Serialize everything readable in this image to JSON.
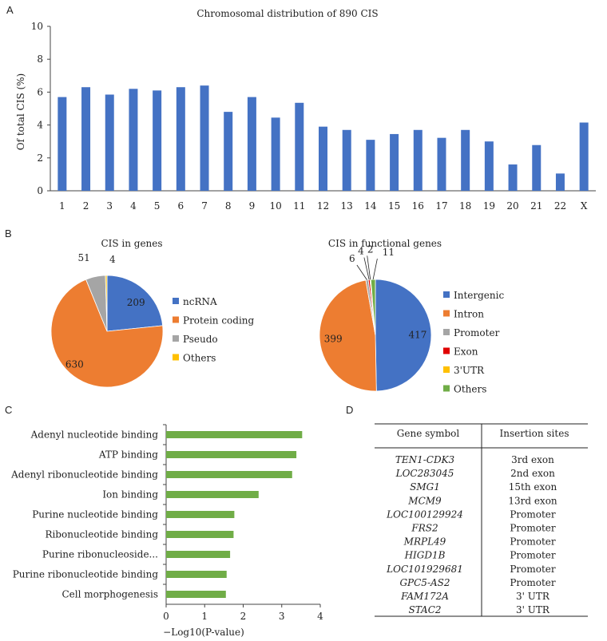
{
  "panels": {
    "a": "A",
    "b": "B",
    "c": "C",
    "d": "D"
  },
  "chart_data": [
    {
      "type": "bar",
      "title": "Chromosomal distribution of 890 CIS",
      "ylabel": "Of total CIS (%)",
      "xlabel": "",
      "ylim": [
        0,
        10
      ],
      "yticks": [
        0,
        2,
        4,
        6,
        8,
        10
      ],
      "categories": [
        "1",
        "2",
        "3",
        "4",
        "5",
        "6",
        "7",
        "8",
        "9",
        "10",
        "11",
        "12",
        "13",
        "14",
        "15",
        "16",
        "17",
        "18",
        "19",
        "20",
        "21",
        "22",
        "X"
      ],
      "values": [
        5.7,
        6.3,
        5.85,
        6.2,
        6.1,
        6.3,
        6.4,
        4.8,
        5.7,
        4.45,
        5.35,
        3.9,
        3.7,
        3.1,
        3.45,
        3.7,
        3.22,
        3.7,
        3.0,
        1.6,
        2.78,
        1.05,
        4.15
      ],
      "color": "#4472C4",
      "grid": false
    },
    {
      "type": "pie",
      "title": "CIS in genes",
      "slices": [
        {
          "label": "ncRNA",
          "value": 209,
          "color": "#4472C4"
        },
        {
          "label": "Protein coding",
          "value": 630,
          "color": "#ED7D31"
        },
        {
          "label": "Pseudo",
          "value": 51,
          "color": "#A5A5A5"
        },
        {
          "label": "Others",
          "value": 4,
          "color": "#FFC000"
        }
      ],
      "legend": "right"
    },
    {
      "type": "pie",
      "title": "CIS in functional genes",
      "slices": [
        {
          "label": "Intergenic",
          "value": 417,
          "color": "#4472C4"
        },
        {
          "label": "Intron",
          "value": 399,
          "color": "#ED7D31"
        },
        {
          "label": "Promoter",
          "value": 6,
          "color": "#A5A5A5"
        },
        {
          "label": "Exon",
          "value": 4,
          "color": "#E00000"
        },
        {
          "label": "3'UTR",
          "value": 2,
          "color": "#FFC000"
        },
        {
          "label": "Others",
          "value": 11,
          "color": "#70AD47"
        }
      ],
      "legend": "right"
    },
    {
      "type": "bar",
      "orientation": "horizontal",
      "title": "",
      "xlabel": "−Log10(P-value)",
      "xlim": [
        0,
        4
      ],
      "xticks": [
        0,
        1,
        2,
        3,
        4
      ],
      "categories": [
        "Adenyl nucleotide binding",
        "ATP binding",
        "Adenyl ribonucleotide binding",
        "Ion binding",
        "Purine nucleotide binding",
        "Ribonucleotide binding",
        "Purine ribonucleoside...",
        "Purine ribonucleotide binding",
        "Cell morphogenesis"
      ],
      "values": [
        3.53,
        3.38,
        3.27,
        2.4,
        1.77,
        1.75,
        1.66,
        1.57,
        1.55
      ],
      "color": "#70AD47"
    },
    {
      "type": "table",
      "columns": [
        "Gene symbol",
        "Insertion sites"
      ],
      "rows": [
        [
          "TEN1-CDK3",
          "3rd exon"
        ],
        [
          "LOC283045",
          "2nd exon"
        ],
        [
          "SMG1",
          "15th exon"
        ],
        [
          "MCM9",
          "13rd exon"
        ],
        [
          "LOC100129924",
          "Promoter"
        ],
        [
          "FRS2",
          "Promoter"
        ],
        [
          "MRPL49",
          "Promoter"
        ],
        [
          "HIGD1B",
          "Promoter"
        ],
        [
          "LOC101929681",
          "Promoter"
        ],
        [
          "GPC5-AS2",
          "Promoter"
        ],
        [
          "FAM172A",
          "3' UTR"
        ],
        [
          "STAC2",
          "3' UTR"
        ]
      ]
    }
  ]
}
